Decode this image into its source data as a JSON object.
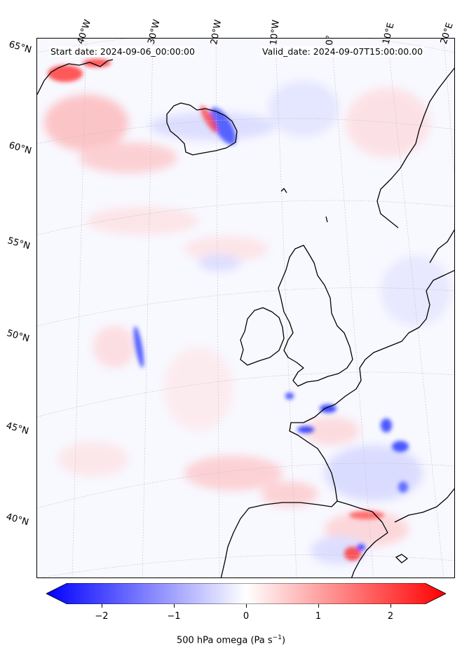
{
  "header": {
    "start_date": "Start date: 2024-09-06_00:00:00",
    "valid_date": "Valid_date: 2024-09-07T15:00:00.00"
  },
  "longitude_labels": [
    "40°W",
    "30°W",
    "20°W",
    "10°W",
    "0°",
    "10°E",
    "20°E"
  ],
  "latitude_labels": [
    "65°N",
    "60°N",
    "55°N",
    "50°N",
    "45°N",
    "40°N"
  ],
  "colorbar": {
    "ticks": [
      "−2",
      "−1",
      "0",
      "1",
      "2"
    ],
    "label": "500 hPa omega (Pa s",
    "label_sup": "−1",
    "label_close": ")",
    "colors": {
      "low": "#0000ff",
      "mid": "#ffffff",
      "high": "#ff0000"
    }
  }
}
